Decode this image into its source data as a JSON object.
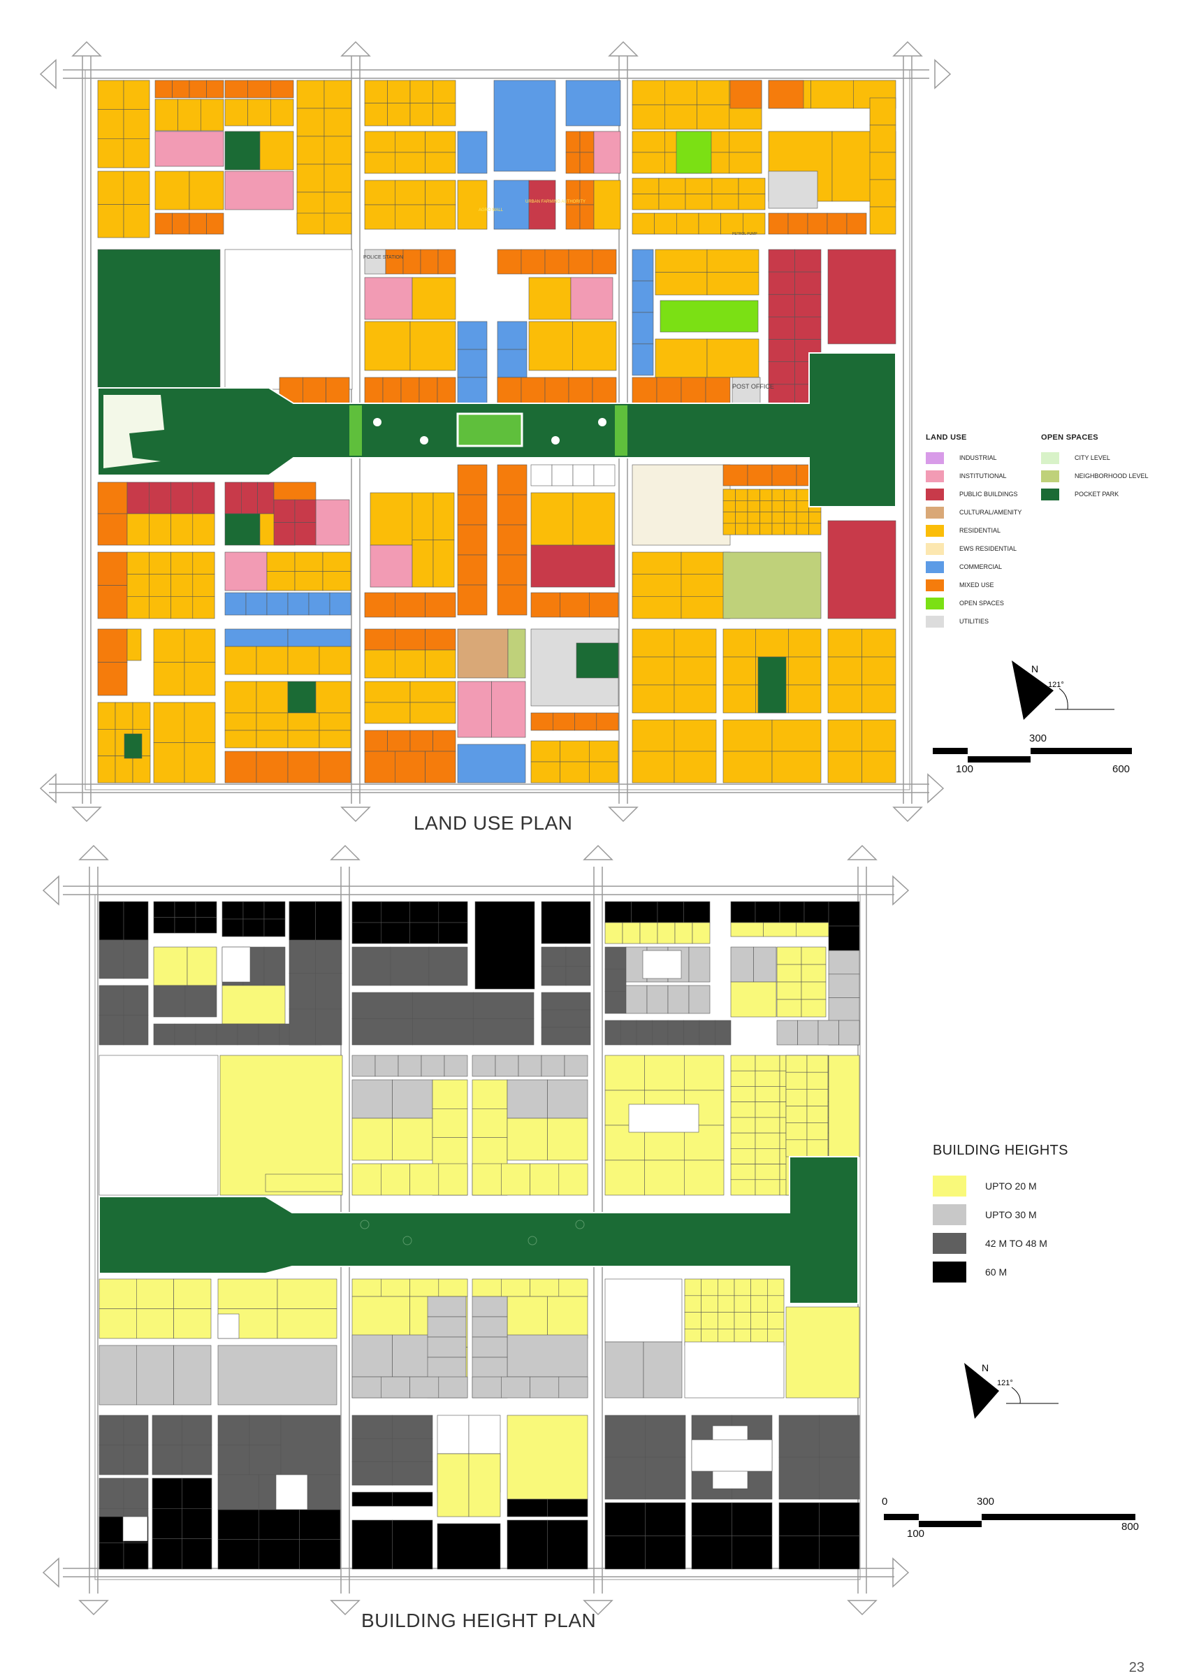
{
  "land_use_plan": {
    "title": "LAND USE PLAN",
    "legend_land_use": {
      "heading": "LAND USE",
      "items": [
        {
          "label": "INDUSTRIAL",
          "color": "#d89be8"
        },
        {
          "label": "INSTITUTIONAL",
          "color": "#f29bb4"
        },
        {
          "label": "PUBLIC BUILDINGS",
          "color": "#c83a4a"
        },
        {
          "label": "CULTURAL/AMENITY",
          "color": "#d9a877"
        },
        {
          "label": "RESIDENTIAL",
          "color": "#fbbd08"
        },
        {
          "label": "EWS RESIDENTIAL",
          "color": "#fce7b0"
        },
        {
          "label": "COMMERCIAL",
          "color": "#5c9be6"
        },
        {
          "label": "MIXED USE",
          "color": "#f57c0c"
        },
        {
          "label": "OPEN SPACES",
          "color": "#7be014"
        },
        {
          "label": "UTILITIES",
          "color": "#dcdcdc"
        }
      ]
    },
    "legend_open_spaces": {
      "heading": "OPEN SPACES",
      "items": [
        {
          "label": "CITY LEVEL",
          "color": "#d8f2c8"
        },
        {
          "label": "NEIGHBORHOOD LEVEL",
          "color": "#bfd17a"
        },
        {
          "label": "POCKET PARK",
          "color": "#1b6b35"
        }
      ]
    },
    "map_labels": {
      "police_station": "POLICE STATION",
      "post_office": "POST OFFICE",
      "agro_mall": "AGRO MALL",
      "urban_farming": "URBAN FARMING AUTHORITY",
      "petrol_pump": "PETROL PUMP"
    },
    "north": {
      "letter": "N",
      "angle": "121°"
    },
    "scale": {
      "labels": [
        "100",
        "300",
        "600"
      ]
    }
  },
  "building_height_plan": {
    "title": "BUILDING HEIGHT PLAN",
    "legend": {
      "heading": "BUILDING HEIGHTS",
      "items": [
        {
          "label": "UPTO 20 M",
          "color": "#f9f97a"
        },
        {
          "label": "UPTO 30 M",
          "color": "#c8c8c8"
        },
        {
          "label": "42 M TO 48 M",
          "color": "#5f5f5f"
        },
        {
          "label": "60 M",
          "color": "#000000"
        }
      ]
    },
    "north": {
      "letter": "N",
      "angle": "121°"
    },
    "scale": {
      "labels": [
        "0",
        "100",
        "300",
        "800"
      ]
    }
  },
  "page_number": "23"
}
